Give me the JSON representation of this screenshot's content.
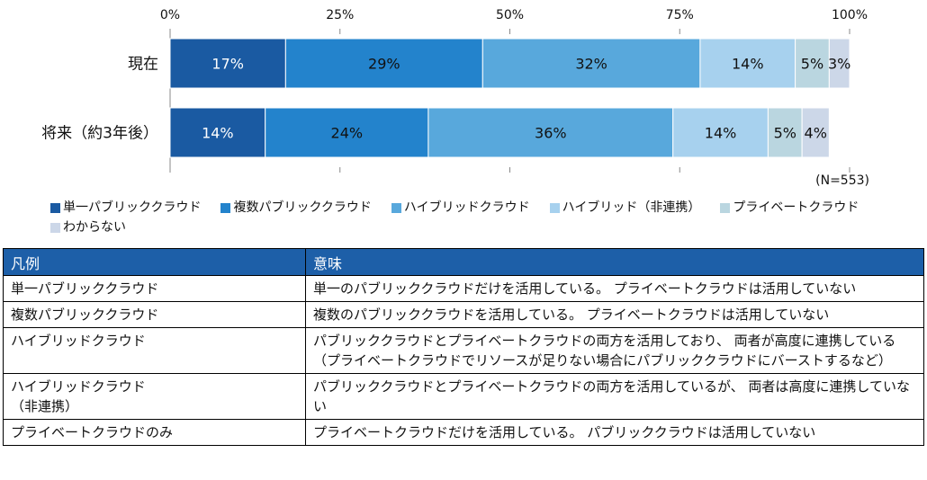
{
  "chart_data": {
    "type": "bar",
    "orientation": "horizontal",
    "stacked": true,
    "categories": [
      "現在",
      "将来（約3年後）"
    ],
    "series": [
      {
        "name": "単一パブリッククラウド",
        "color": "#1a5aa2",
        "values": [
          17,
          14
        ]
      },
      {
        "name": "複数パブリッククラウド",
        "color": "#2383cc",
        "values": [
          29,
          24
        ]
      },
      {
        "name": "ハイブリッドクラウド",
        "color": "#58a8dc",
        "values": [
          32,
          36
        ]
      },
      {
        "name": "ハイブリッド（非連携）",
        "color": "#a7d1ee",
        "values": [
          14,
          14
        ]
      },
      {
        "name": "プライベートクラウド",
        "color": "#bad6e0",
        "values": [
          5,
          5
        ]
      },
      {
        "name": "わからない",
        "color": "#ccd7e8",
        "values": [
          3,
          4
        ]
      }
    ],
    "value_labels": [
      [
        "17%",
        "29%",
        "32%",
        "14%",
        "5%",
        "3%"
      ],
      [
        "14%",
        "24%",
        "36%",
        "14%",
        "5%",
        "4%"
      ]
    ],
    "x_ticks": [
      0,
      25,
      50,
      75,
      100
    ],
    "x_tick_labels": [
      "0%",
      "25%",
      "50%",
      "75%",
      "100%"
    ],
    "xlim": [
      0,
      100
    ],
    "sample_note": "(N=553)",
    "legend_position": "bottom",
    "grid": false
  },
  "table": {
    "headers": [
      "凡例",
      "意味"
    ],
    "rows": [
      {
        "term": "単一パブリッククラウド",
        "meaning": "単一のパブリッククラウドだけを活用している。 プライベートクラウドは活用していない"
      },
      {
        "term": "複数パブリッククラウド",
        "meaning": "複数のパブリッククラウドを活用している。 プライベートクラウドは活用していない"
      },
      {
        "term": "ハイブリッドクラウド",
        "meaning": "パブリッククラウドとプライベートクラウドの両方を活用しており、 両者が高度に連携している （プライベートクラウドでリソースが足りない場合にパブリッククラウドにバーストするなど）"
      },
      {
        "term": "ハイブリッドクラウド\n（非連携）",
        "meaning": "パブリッククラウドとプライベートクラウドの両方を活用しているが、 両者は高度に連携していない"
      },
      {
        "term": "プライベートクラウドのみ",
        "meaning": "プライベートクラウドだけを活用している。 パブリッククラウドは活用していない"
      }
    ]
  }
}
